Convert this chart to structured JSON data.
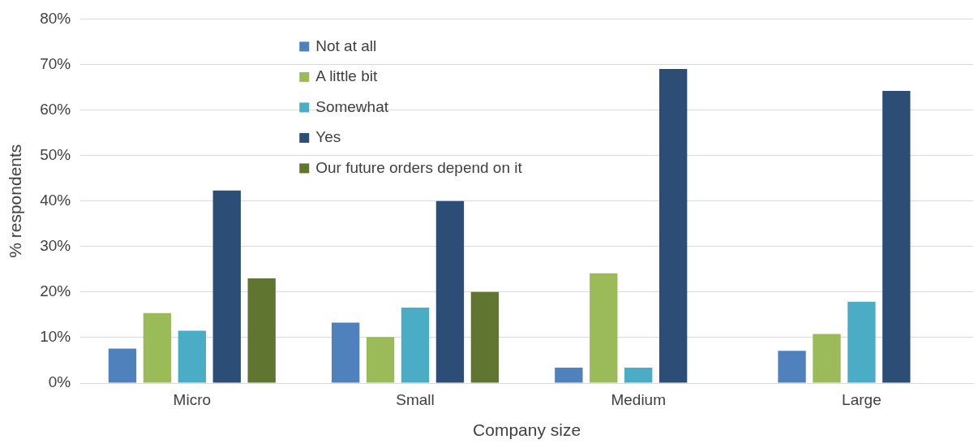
{
  "chart_data": {
    "type": "bar",
    "xlabel": "Company size",
    "ylabel": "% respondents",
    "categories": [
      "Micro",
      "Small",
      "Medium",
      "Large"
    ],
    "series": [
      {
        "name": "Not at all",
        "color": "#4f81bd",
        "values": [
          7.6,
          13.3,
          3.4,
          7.1
        ]
      },
      {
        "name": "A little bit",
        "color": "#9bbb59",
        "values": [
          15.4,
          10.1,
          24.1,
          10.8
        ]
      },
      {
        "name": "Somewhat",
        "color": "#4bacc6",
        "values": [
          11.5,
          16.6,
          3.4,
          17.9
        ]
      },
      {
        "name": "Yes",
        "color": "#2c4d75",
        "values": [
          42.3,
          40.0,
          69.0,
          64.2
        ]
      },
      {
        "name": "Our future orders depend on it",
        "color": "#5f7530",
        "values": [
          23.0,
          20.0,
          0,
          0
        ]
      }
    ],
    "ylim": [
      0,
      80
    ],
    "yticks": [
      {
        "value": 0,
        "label": "0%"
      },
      {
        "value": 10,
        "label": "10%"
      },
      {
        "value": 20,
        "label": "20%"
      },
      {
        "value": 30,
        "label": "30%"
      },
      {
        "value": 40,
        "label": "40%"
      },
      {
        "value": 50,
        "label": "50%"
      },
      {
        "value": 60,
        "label": "60%"
      },
      {
        "value": 70,
        "label": "70%"
      },
      {
        "value": 80,
        "label": "80%"
      }
    ],
    "grid": "y",
    "legend": "top"
  }
}
